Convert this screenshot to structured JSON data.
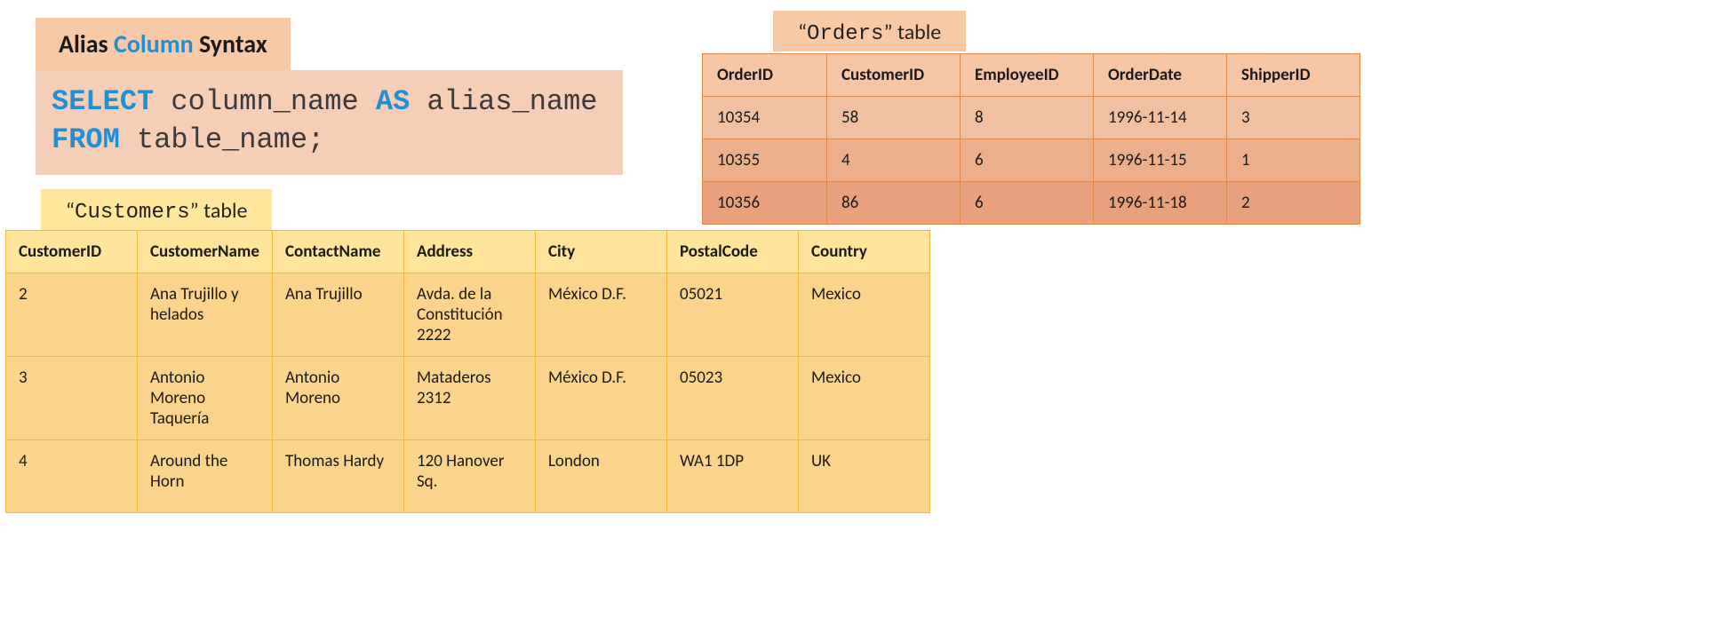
{
  "heading": {
    "pre": "Alias ",
    "kw": "Column",
    "post": " Syntax",
    "bg_color": "#f7c9a7",
    "kw_color": "#1f8fd6",
    "font_size_pt": 21
  },
  "code": {
    "line1_kw1": "SELECT",
    "line1_mid": " column_name ",
    "line1_kw2": "AS",
    "line1_end": " alias_name",
    "line2_kw": "FROM",
    "line2_end": " table_name;",
    "bg_color": "#f4ceb7",
    "kw_color": "#1f8fd6",
    "text_color": "#3a3a3a",
    "font_family": "Consolas",
    "font_size_pt": 24
  },
  "orders": {
    "title_quote_open": "“",
    "title_name": "Orders",
    "title_quote_close": "”",
    "title_suffix": " table",
    "title_bg": "#f7c9a7",
    "header_bg": "#f5c5a6",
    "border_color": "#e08a4a",
    "row_gradient_colors": [
      "#f1bfa1",
      "#edae8c",
      "#e9a07c"
    ],
    "columns": [
      "OrderID",
      "CustomerID",
      "EmployeeID",
      "OrderDate",
      "ShipperID"
    ],
    "rows": [
      [
        "10354",
        "58",
        "8",
        "1996-11-14",
        "3"
      ],
      [
        "10355",
        "4",
        "6",
        "1996-11-15",
        "1"
      ],
      [
        "10356",
        "86",
        "6",
        "1996-11-18",
        "2"
      ]
    ]
  },
  "customers": {
    "title_quote_open": "“",
    "title_name": "Customers",
    "title_quote_close": "”",
    "title_suffix": " table",
    "title_bg": "#ffe69a",
    "header_bg": "#ffe49a",
    "row_bg": "#fad48a",
    "border_color": "#f2b93c",
    "columns": [
      "CustomerID",
      "CustomerName",
      "ContactName",
      "Address",
      "City",
      "PostalCode",
      "Country"
    ],
    "rows": [
      [
        "2",
        "Ana Trujillo y helados",
        "Ana Trujillo",
        "Avda. de la Constitución 2222",
        "México D.F.",
        "05021",
        "Mexico"
      ],
      [
        "3",
        "Antonio Moreno Taquería",
        "Antonio Moreno",
        "Mataderos 2312",
        "México D.F.",
        "05023",
        "Mexico"
      ],
      [
        "4",
        "Around the Horn",
        "Thomas Hardy",
        "120 Hanover Sq.",
        "London",
        "WA1 1DP",
        "UK"
      ]
    ]
  }
}
